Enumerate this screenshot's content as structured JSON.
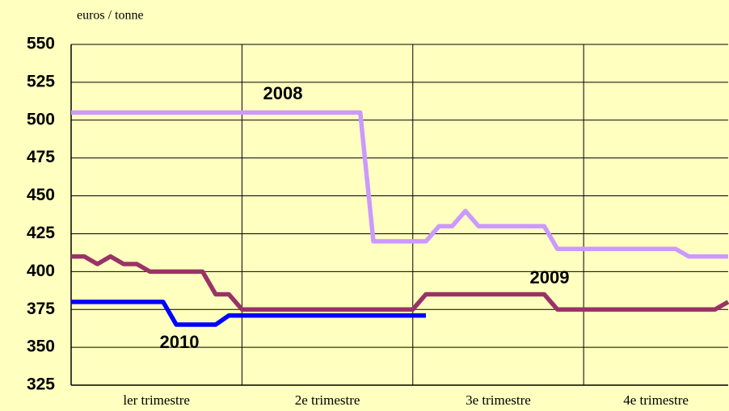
{
  "chart_data": {
    "type": "line",
    "y_label": "euros / tonne",
    "categories": [
      "ler trimestre",
      "2e trimestre",
      "3e trimestre",
      "4e trimestre"
    ],
    "x": [
      0,
      1,
      2,
      3,
      4,
      5,
      6,
      7,
      8,
      9,
      10,
      11,
      12,
      13,
      14,
      15,
      16,
      17,
      18,
      19,
      20,
      21,
      22,
      23,
      24,
      25,
      26,
      27,
      28,
      29,
      30,
      31,
      32,
      33,
      34,
      35,
      36,
      37,
      38,
      39,
      40,
      41,
      42,
      43,
      44,
      45,
      46,
      47,
      48,
      49,
      50
    ],
    "xlim": [
      0,
      50
    ],
    "xticks": [
      0,
      13,
      26,
      39
    ],
    "ylim": [
      325,
      550
    ],
    "yticks": [
      325,
      350,
      375,
      400,
      425,
      450,
      475,
      500,
      525,
      550
    ],
    "grid": true,
    "series": [
      {
        "name": "2008",
        "color": "#cc99ff",
        "values": [
          505,
          505,
          505,
          505,
          505,
          505,
          505,
          505,
          505,
          505,
          505,
          505,
          505,
          505,
          505,
          505,
          505,
          505,
          505,
          505,
          505,
          505,
          505,
          420,
          420,
          420,
          420,
          420,
          430,
          430,
          440,
          430,
          430,
          430,
          430,
          430,
          430,
          415,
          415,
          415,
          415,
          415,
          415,
          415,
          415,
          415,
          415,
          410,
          410,
          410,
          410
        ]
      },
      {
        "name": "2009",
        "color": "#993366",
        "values": [
          410,
          410,
          405,
          410,
          405,
          405,
          400,
          400,
          400,
          400,
          400,
          385,
          385,
          375,
          375,
          375,
          375,
          375,
          375,
          375,
          375,
          375,
          375,
          375,
          375,
          375,
          375,
          385,
          385,
          385,
          385,
          385,
          385,
          385,
          385,
          385,
          385,
          375,
          375,
          375,
          375,
          375,
          375,
          375,
          375,
          375,
          375,
          375,
          375,
          375,
          380
        ]
      },
      {
        "name": "2010",
        "color": "#0000ff",
        "values": [
          380,
          380,
          380,
          380,
          380,
          380,
          380,
          380,
          365,
          365,
          365,
          365,
          371,
          371,
          371,
          371,
          371,
          371,
          371,
          371,
          371,
          371,
          371,
          371,
          371,
          371,
          371,
          371,
          null,
          null,
          null,
          null,
          null,
          null,
          null,
          null,
          null,
          null,
          null,
          null,
          null,
          null,
          null,
          null,
          null,
          null,
          null,
          null,
          null,
          null,
          null
        ]
      }
    ]
  }
}
